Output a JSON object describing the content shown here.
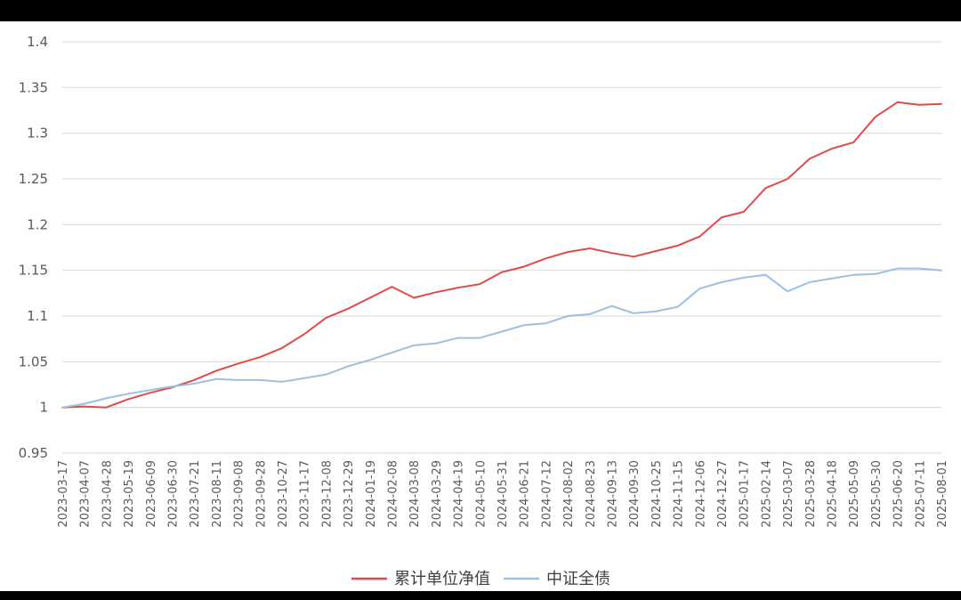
{
  "chart_data": {
    "type": "line",
    "title": "",
    "xlabel": "",
    "ylabel": "",
    "ylim": [
      0.95,
      1.4
    ],
    "yticks": [
      "0.95",
      "1",
      "1.05",
      "1.1",
      "1.15",
      "1.2",
      "1.25",
      "1.3",
      "1.35",
      "1.4"
    ],
    "grid": true,
    "legend": "bottom",
    "categories": [
      "2023-03-17",
      "2023-04-07",
      "2023-04-28",
      "2023-05-19",
      "2023-06-09",
      "2023-06-30",
      "2023-07-21",
      "2023-08-11",
      "2023-09-08",
      "2023-09-28",
      "2023-10-27",
      "2023-11-17",
      "2023-12-08",
      "2023-12-29",
      "2024-01-19",
      "2024-02-08",
      "2024-03-08",
      "2024-03-29",
      "2024-04-19",
      "2024-05-10",
      "2024-05-31",
      "2024-06-21",
      "2024-07-12",
      "2024-08-02",
      "2024-08-23",
      "2024-09-13",
      "2024-09-30",
      "2024-10-25",
      "2024-11-15",
      "2024-12-06",
      "2024-12-27",
      "2025-01-17",
      "2025-02-14",
      "2025-03-07",
      "2025-03-28",
      "2025-04-18",
      "2025-05-09",
      "2025-05-30",
      "2025-06-20",
      "2025-07-11",
      "2025-08-01"
    ],
    "series": [
      {
        "name": "累计单位净值",
        "color": "#e04a4a",
        "values": [
          1.0,
          1.001,
          1.0,
          1.009,
          1.016,
          1.022,
          1.03,
          1.04,
          1.048,
          1.055,
          1.065,
          1.08,
          1.098,
          1.108,
          1.12,
          1.132,
          1.12,
          1.126,
          1.131,
          1.135,
          1.148,
          1.154,
          1.163,
          1.17,
          1.174,
          1.169,
          1.165,
          1.171,
          1.177,
          1.187,
          1.208,
          1.214,
          1.24,
          1.25,
          1.272,
          1.283,
          1.29,
          1.318,
          1.334,
          1.331,
          1.332
        ]
      },
      {
        "name": "中证全债",
        "color": "#9dbfe0",
        "values": [
          1.0,
          1.004,
          1.01,
          1.015,
          1.019,
          1.023,
          1.026,
          1.031,
          1.03,
          1.03,
          1.028,
          1.032,
          1.036,
          1.045,
          1.052,
          1.06,
          1.068,
          1.07,
          1.076,
          1.076,
          1.083,
          1.09,
          1.092,
          1.1,
          1.102,
          1.111,
          1.103,
          1.105,
          1.11,
          1.13,
          1.137,
          1.142,
          1.145,
          1.127,
          1.137,
          1.141,
          1.145,
          1.146,
          1.152,
          1.152,
          1.15
        ]
      }
    ]
  }
}
